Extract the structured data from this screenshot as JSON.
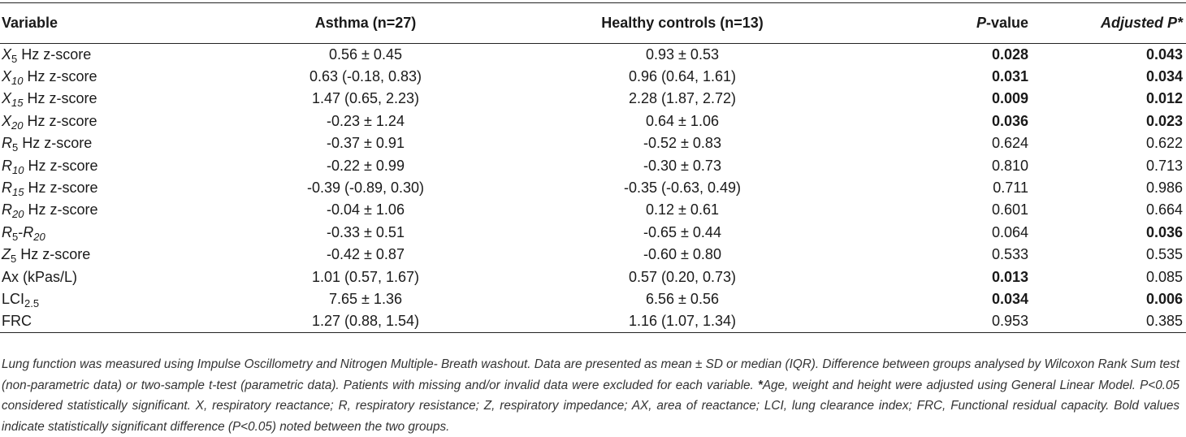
{
  "table": {
    "headers": {
      "variable": "Variable",
      "asthma": "Asthma (n=27)",
      "healthy": "Healthy controls (n=13)",
      "p_prefix": "P",
      "p_suffix": "-value",
      "adj": "Adjusted P*"
    },
    "rows": [
      {
        "v_main": "X",
        "v_sub": "5",
        "v_sub_italic": false,
        "v_tail": " Hz z-score",
        "asthma": "0.56 ± 0.45",
        "healthy": "0.93 ± 0.53",
        "p": "0.028",
        "p_bold": true,
        "adj": "0.043",
        "adj_bold": true
      },
      {
        "v_main": "X",
        "v_sub": "10",
        "v_sub_italic": true,
        "v_tail": " Hz z-score",
        "asthma": "0.63 (-0.18, 0.83)",
        "healthy": "0.96 (0.64, 1.61)",
        "p": "0.031",
        "p_bold": true,
        "adj": "0.034",
        "adj_bold": true
      },
      {
        "v_main": "X",
        "v_sub": "15",
        "v_sub_italic": true,
        "v_tail": " Hz z-score",
        "asthma": "1.47 (0.65, 2.23)",
        "healthy": "2.28 (1.87, 2.72)",
        "p": "0.009",
        "p_bold": true,
        "adj": "0.012",
        "adj_bold": true
      },
      {
        "v_main": "X",
        "v_sub": "20",
        "v_sub_italic": true,
        "v_tail": " Hz z-score",
        "asthma": "-0.23 ± 1.24",
        "healthy": "0.64 ± 1.06",
        "p": "0.036",
        "p_bold": true,
        "adj": "0.023",
        "adj_bold": true
      },
      {
        "v_main": "R",
        "v_sub": "5",
        "v_sub_italic": false,
        "v_tail": " Hz z-score",
        "asthma": "-0.37 ± 0.91",
        "healthy": "-0.52 ± 0.83",
        "p": "0.624",
        "p_bold": false,
        "adj": "0.622",
        "adj_bold": false
      },
      {
        "v_main": "R",
        "v_sub": "10",
        "v_sub_italic": true,
        "v_tail": " Hz z-score",
        "asthma": "-0.22 ± 0.99",
        "healthy": "-0.30 ± 0.73",
        "p": "0.810",
        "p_bold": false,
        "adj": "0.713",
        "adj_bold": false
      },
      {
        "v_main": "R",
        "v_sub": "15",
        "v_sub_italic": true,
        "v_tail": " Hz z-score",
        "asthma": "-0.39 (-0.89, 0.30)",
        "healthy": "-0.35 (-0.63, 0.49)",
        "p": "0.711",
        "p_bold": false,
        "adj": "0.986",
        "adj_bold": false
      },
      {
        "v_main": "R",
        "v_sub": "20",
        "v_sub_italic": true,
        "v_tail": " Hz z-score",
        "asthma": "-0.04 ± 1.06",
        "healthy": "0.12 ± 0.61",
        "p": "0.601",
        "p_bold": false,
        "adj": "0.664",
        "adj_bold": false
      },
      {
        "v_main": "R",
        "v_sub": "5",
        "v_sub_italic": false,
        "v_tail": "-",
        "v_main2": "R",
        "v_sub2": "20",
        "asthma": "-0.33 ± 0.51",
        "healthy": "-0.65 ± 0.44",
        "p": "0.064",
        "p_bold": false,
        "adj": "0.036",
        "adj_bold": true
      },
      {
        "v_main": "Z",
        "v_sub": "5",
        "v_sub_italic": false,
        "v_tail": " Hz z-score",
        "asthma": "-0.42 ± 0.87",
        "healthy": "-0.60 ± 0.80",
        "p": "0.533",
        "p_bold": false,
        "adj": "0.535",
        "adj_bold": false
      },
      {
        "v_plain": "Ax (kPas/L)",
        "asthma": "1.01 (0.57, 1.67)",
        "healthy": "0.57 (0.20, 0.73)",
        "p": "0.013",
        "p_bold": true,
        "adj": "0.085",
        "adj_bold": false
      },
      {
        "v_plain": "LCI",
        "v_plain_sub": "2.5",
        "asthma": "7.65 ± 1.36",
        "healthy": "6.56 ± 0.56",
        "p": "0.034",
        "p_bold": true,
        "adj": "0.006",
        "adj_bold": true
      },
      {
        "v_plain": "FRC",
        "asthma": "1.27 (0.88, 1.54)",
        "healthy": "1.16 (1.07, 1.34)",
        "p": "0.953",
        "p_bold": false,
        "adj": "0.385",
        "adj_bold": false
      }
    ]
  },
  "footnote": {
    "lead": "Lung function was measured using Impulse Oscillometry and Nitrogen Multiple- Breath washout. Data are presented as mean ± SD or median (IQR). Difference between groups analysed by Wilcoxon Rank Sum test (non-parametric data) or two-sample t-test (parametric data). Patients with missing and/or invalid data were excluded for each variable. ",
    "star": "*",
    "rest": "Age, weight and height were adjusted using General Linear Model. P<0.05 considered statistically significant. X, respiratory reactance; R, respiratory resistance; Z, respiratory impedance; AX, area of reactance; LCI, lung clearance index; FRC, Functional residual capacity. Bold values indicate statistically significant difference (P<0.05) noted between the two groups."
  }
}
